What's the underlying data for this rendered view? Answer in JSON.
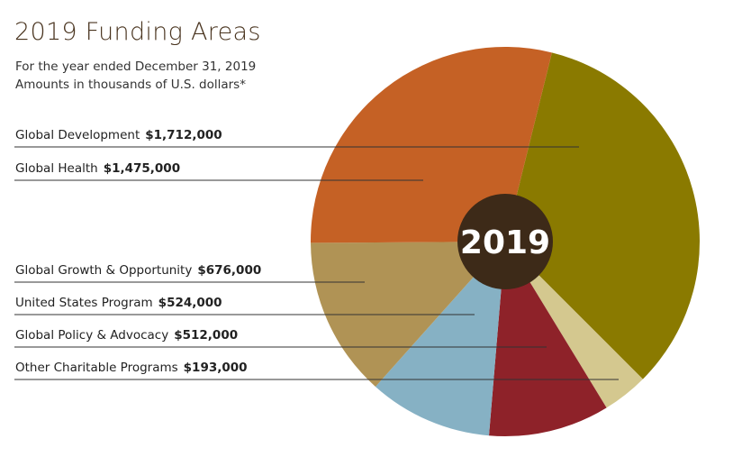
{
  "title": "2019 Funding Areas",
  "subtitle1": "For the year ended December 31, 2019",
  "subtitle2": "Amounts in thousands of U.S. dollars*",
  "center_label": "2019",
  "chart_data": {
    "type": "pie",
    "title": "2019 Funding Areas",
    "slices": [
      {
        "name": "Global Development",
        "value": 1712000,
        "label": "$1,712,000",
        "color": "#8a7a00"
      },
      {
        "name": "Other Charitable Programs",
        "value": 193000,
        "label": "$193,000",
        "color": "#d4c88f"
      },
      {
        "name": "Global Policy & Advocacy",
        "value": 512000,
        "label": "$512,000",
        "color": "#8e2229"
      },
      {
        "name": "United States Program",
        "value": 524000,
        "label": "$524,000",
        "color": "#86b1c4"
      },
      {
        "name": "Global Growth & Opportunity",
        "value": 676000,
        "label": "$676,000",
        "color": "#b09355"
      },
      {
        "name": "Global Health",
        "value": 1475000,
        "label": "$1,475,000",
        "color": "#c56125"
      }
    ],
    "center_color": "#3d2a18",
    "donut_hole": true,
    "legend": "left, with leader lines"
  }
}
